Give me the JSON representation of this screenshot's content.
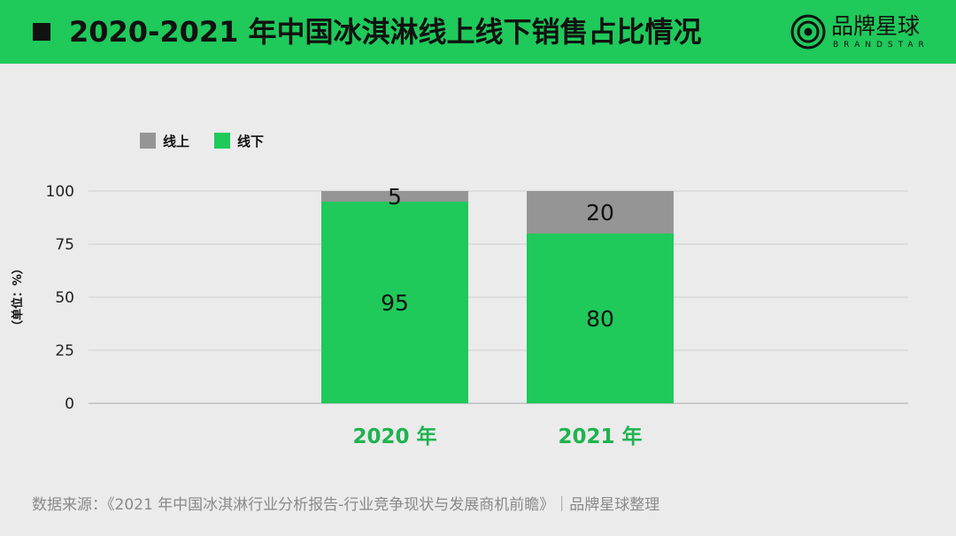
{
  "header": {
    "title": "2020-2021 年中国冰淇淋线上线下销售占比情况",
    "logo_name": "品牌星球",
    "logo_sub": "BRANDSTAR",
    "bg_color": "#1fc95a"
  },
  "chart_data": {
    "type": "bar",
    "stacked": true,
    "categories": [
      "2020 年",
      "2021 年"
    ],
    "series": [
      {
        "name": "线下",
        "values": [
          95,
          80
        ],
        "color": "#1fc95a"
      },
      {
        "name": "线上",
        "values": [
          5,
          20
        ],
        "color": "#959595"
      }
    ],
    "ylabel": "（单位：%）",
    "yticks": [
      0,
      25,
      50,
      75,
      100
    ],
    "ylim": [
      0,
      100
    ],
    "grid": true,
    "legend": "top-left"
  },
  "source": "数据来源：《2021 年中国冰淇淋行业分析报告-行业竞争现状与发展商机前瞻》｜品牌星球整理"
}
